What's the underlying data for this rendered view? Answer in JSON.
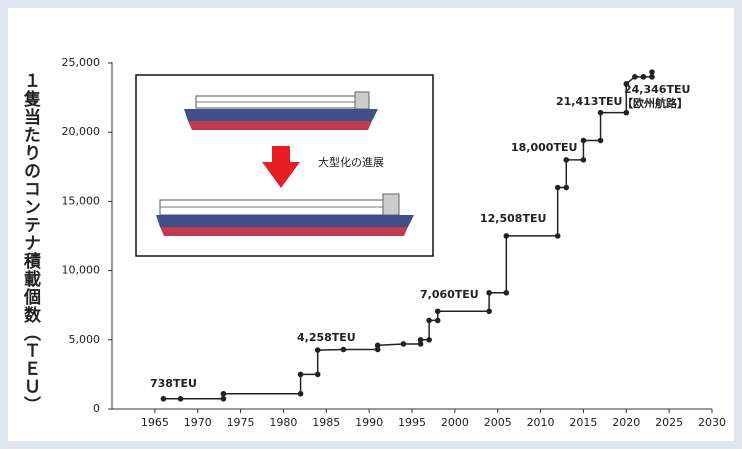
{
  "chart_data": {
    "type": "line",
    "y_label": "１隻当たりのコンテナ積載個数（ＴＥＵ）",
    "inset_label": "大型化の進展",
    "x": [
      1966,
      1968,
      1973,
      1973,
      1982,
      1982,
      1984,
      1984,
      1987,
      1991,
      1991,
      1994,
      1996,
      1996,
      1997,
      1997,
      1998,
      1998,
      2004,
      2004,
      2006,
      2006,
      2012,
      2012,
      2013,
      2013,
      2015,
      2015,
      2017,
      2017,
      2020,
      2020,
      2021,
      2022,
      2023,
      2023
    ],
    "series": [
      {
        "color": "#222222",
        "values": [
          738,
          738,
          738,
          1100,
          1100,
          2500,
          2500,
          4258,
          4300,
          4300,
          4600,
          4700,
          4700,
          5000,
          5000,
          6400,
          6400,
          7060,
          7060,
          8400,
          8400,
          12508,
          12508,
          16000,
          16000,
          18000,
          18000,
          19400,
          19400,
          21413,
          21413,
          23500,
          24000,
          24000,
          24000,
          24346
        ]
      }
    ],
    "annotations": [
      "738TEU",
      "4,258TEU",
      "7,060TEU",
      "12,508TEU",
      "18,000TEU",
      "21,413TEU",
      "24,346TEU",
      "【欧州航路】"
    ],
    "xlim": [
      1960,
      2030
    ],
    "xticks": [
      1965,
      1970,
      1975,
      1980,
      1985,
      1990,
      1995,
      2000,
      2005,
      2010,
      2015,
      2020,
      2025,
      2030
    ],
    "ylim": [
      0,
      25000
    ],
    "yticks": [
      0,
      {
        "value": 5000,
        "label": "5,000"
      },
      {
        "value": 10000,
        "label": "10,000"
      },
      {
        "value": 15000,
        "label": "15,000"
      },
      {
        "value": 20000,
        "label": "20,000"
      },
      {
        "value": 25000,
        "label": "25,000"
      }
    ],
    "grid": false
  }
}
